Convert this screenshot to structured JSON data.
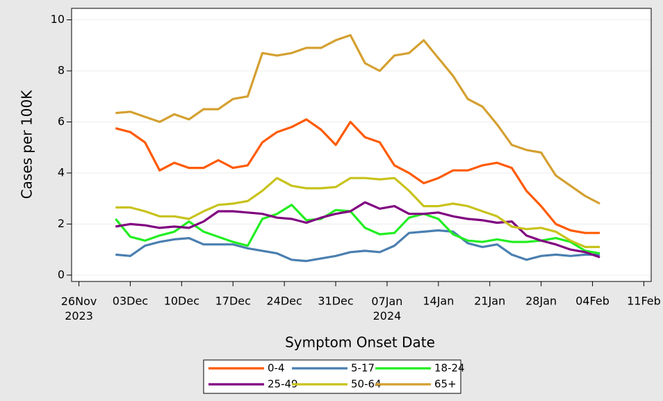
{
  "chart_data": {
    "type": "line",
    "xlabel": "Symptom Onset Date",
    "ylabel": "Cases per 100K",
    "x": [
      "2023-12-01",
      "2023-12-03",
      "2023-12-05",
      "2023-12-07",
      "2023-12-09",
      "2023-12-11",
      "2023-12-13",
      "2023-12-15",
      "2023-12-17",
      "2023-12-19",
      "2023-12-21",
      "2023-12-23",
      "2023-12-25",
      "2023-12-27",
      "2023-12-29",
      "2023-12-31",
      "2024-01-02",
      "2024-01-04",
      "2024-01-06",
      "2024-01-08",
      "2024-01-10",
      "2024-01-12",
      "2024-01-14",
      "2024-01-16",
      "2024-01-18",
      "2024-01-20",
      "2024-01-22",
      "2024-01-24",
      "2024-01-26",
      "2024-01-28",
      "2024-01-30",
      "2024-02-01",
      "2024-02-03",
      "2024-02-05"
    ],
    "series": [
      {
        "name": "0-4",
        "color": "#ff5a00",
        "values": [
          5.75,
          5.6,
          5.2,
          4.1,
          4.4,
          4.2,
          4.2,
          4.5,
          4.2,
          4.3,
          5.2,
          5.6,
          5.8,
          6.1,
          5.7,
          5.1,
          6.0,
          5.4,
          5.2,
          4.3,
          4.0,
          3.6,
          3.8,
          4.1,
          4.1,
          4.3,
          4.4,
          4.2,
          3.3,
          2.7,
          2.0,
          1.75,
          1.65,
          1.65
        ]
      },
      {
        "name": "5-17",
        "color": "#4a7fb0",
        "values": [
          0.8,
          0.75,
          1.15,
          1.3,
          1.4,
          1.45,
          1.2,
          1.2,
          1.2,
          1.05,
          0.95,
          0.85,
          0.6,
          0.55,
          0.65,
          0.75,
          0.9,
          0.95,
          0.9,
          1.15,
          1.65,
          1.7,
          1.75,
          1.7,
          1.25,
          1.1,
          1.2,
          0.8,
          0.6,
          0.75,
          0.8,
          0.75,
          0.8,
          0.8
        ]
      },
      {
        "name": "18-24",
        "color": "#22ee22",
        "values": [
          2.2,
          1.5,
          1.35,
          1.55,
          1.7,
          2.1,
          1.7,
          1.5,
          1.3,
          1.15,
          2.2,
          2.4,
          2.75,
          2.15,
          2.2,
          2.55,
          2.5,
          1.85,
          1.6,
          1.65,
          2.25,
          2.4,
          2.2,
          1.6,
          1.35,
          1.3,
          1.4,
          1.3,
          1.3,
          1.35,
          1.45,
          1.3,
          0.95,
          0.85
        ]
      },
      {
        "name": "25-49",
        "color": "#800080",
        "values": [
          1.9,
          2.0,
          1.95,
          1.85,
          1.9,
          1.85,
          2.1,
          2.5,
          2.5,
          2.45,
          2.4,
          2.25,
          2.2,
          2.05,
          2.25,
          2.4,
          2.5,
          2.85,
          2.6,
          2.7,
          2.4,
          2.4,
          2.45,
          2.3,
          2.2,
          2.15,
          2.05,
          2.1,
          1.55,
          1.35,
          1.2,
          1.0,
          0.9,
          0.7
        ]
      },
      {
        "name": "50-64",
        "color": "#c8c21c",
        "values": [
          2.65,
          2.65,
          2.5,
          2.3,
          2.3,
          2.2,
          2.5,
          2.75,
          2.8,
          2.9,
          3.3,
          3.8,
          3.5,
          3.4,
          3.4,
          3.45,
          3.8,
          3.8,
          3.75,
          3.8,
          3.3,
          2.7,
          2.7,
          2.8,
          2.7,
          2.5,
          2.3,
          1.9,
          1.8,
          1.85,
          1.7,
          1.35,
          1.1,
          1.1
        ]
      },
      {
        "name": "65+",
        "color": "#d4a030",
        "values": [
          6.35,
          6.4,
          6.2,
          6.0,
          6.3,
          6.1,
          6.5,
          6.5,
          6.9,
          7.0,
          8.7,
          8.6,
          8.7,
          8.9,
          8.9,
          9.2,
          9.4,
          8.3,
          8.0,
          8.6,
          8.7,
          9.2,
          8.5,
          7.8,
          6.9,
          6.6,
          5.9,
          5.1,
          4.9,
          4.8,
          3.9,
          3.5,
          3.1,
          2.8
        ]
      }
    ],
    "xlim": [
      "2023-11-25",
      "2024-02-12"
    ],
    "xticks": [
      {
        "value": "2023-11-26",
        "label": "26Nov\n2023"
      },
      {
        "value": "2023-12-03",
        "label": "03Dec"
      },
      {
        "value": "2023-12-10",
        "label": "10Dec"
      },
      {
        "value": "2023-12-17",
        "label": "17Dec"
      },
      {
        "value": "2023-12-24",
        "label": "24Dec"
      },
      {
        "value": "2023-12-31",
        "label": "31Dec"
      },
      {
        "value": "2024-01-07",
        "label": "07Jan\n2024"
      },
      {
        "value": "2024-01-14",
        "label": "14Jan"
      },
      {
        "value": "2024-01-21",
        "label": "21Jan"
      },
      {
        "value": "2024-01-28",
        "label": "28Jan"
      },
      {
        "value": "2024-02-04",
        "label": "04Feb"
      },
      {
        "value": "2024-02-11",
        "label": "11Feb"
      }
    ],
    "ylim": [
      -0.25,
      10.45
    ],
    "yticks": [
      0,
      2,
      4,
      6,
      8,
      10
    ],
    "grid": true,
    "legend": "bottom"
  }
}
